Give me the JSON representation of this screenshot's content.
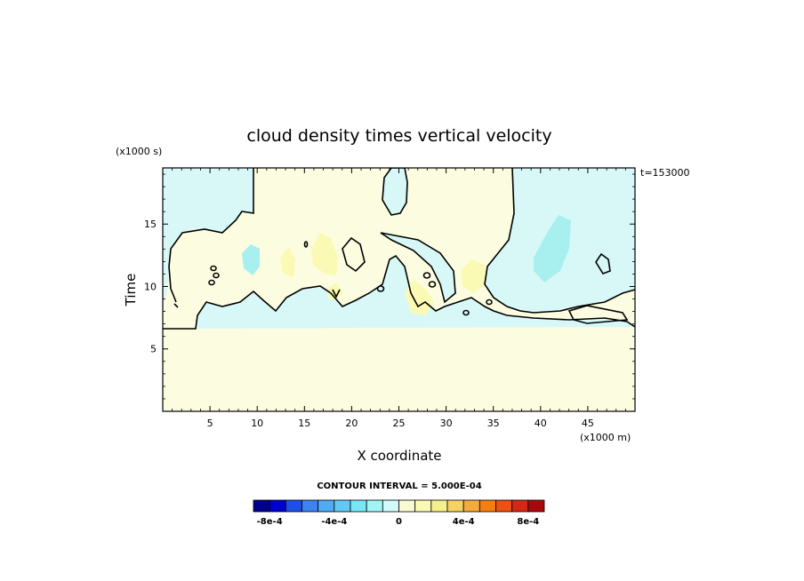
{
  "chart_data": {
    "type": "heatmap",
    "title": "cloud density times vertical velocity",
    "xlabel": "X coordinate",
    "ylabel": "Time",
    "x_units_label": "(x1000 m)",
    "y_units_label": "(x1000 s)",
    "time_stamp": "t=153000",
    "xlim": [
      0,
      50
    ],
    "ylim": [
      0,
      19.5
    ],
    "x_ticks": [
      5,
      10,
      15,
      20,
      25,
      30,
      35,
      40,
      45
    ],
    "y_ticks": [
      5,
      10,
      15
    ],
    "contour_interval_text": "CONTOUR INTERVAL = 5.000E-04",
    "colorbar": {
      "colors": [
        "#00008b",
        "#0000cd",
        "#1e50e6",
        "#3c82f0",
        "#50aaf5",
        "#64c8f5",
        "#78e6f5",
        "#a0f5f5",
        "#d2fafa",
        "#fafad2",
        "#fafab4",
        "#f5f08c",
        "#f5d264",
        "#f5aa3c",
        "#f57d14",
        "#eb5014",
        "#d22814",
        "#a50a0a"
      ],
      "tick_labels": [
        "-8e-4",
        "-4e-4",
        "0",
        "4e-4",
        "8e-4"
      ],
      "tick_values": [
        -0.0008,
        -0.0004,
        0,
        0.0004,
        0.0008
      ],
      "min": -0.0009,
      "max": 0.0009
    },
    "fields": {
      "background_color": "#fcfce0",
      "negative_light": "#d8f8f8",
      "negative_mid": "#a8f0f0",
      "positive_light": "#fafab4"
    }
  }
}
